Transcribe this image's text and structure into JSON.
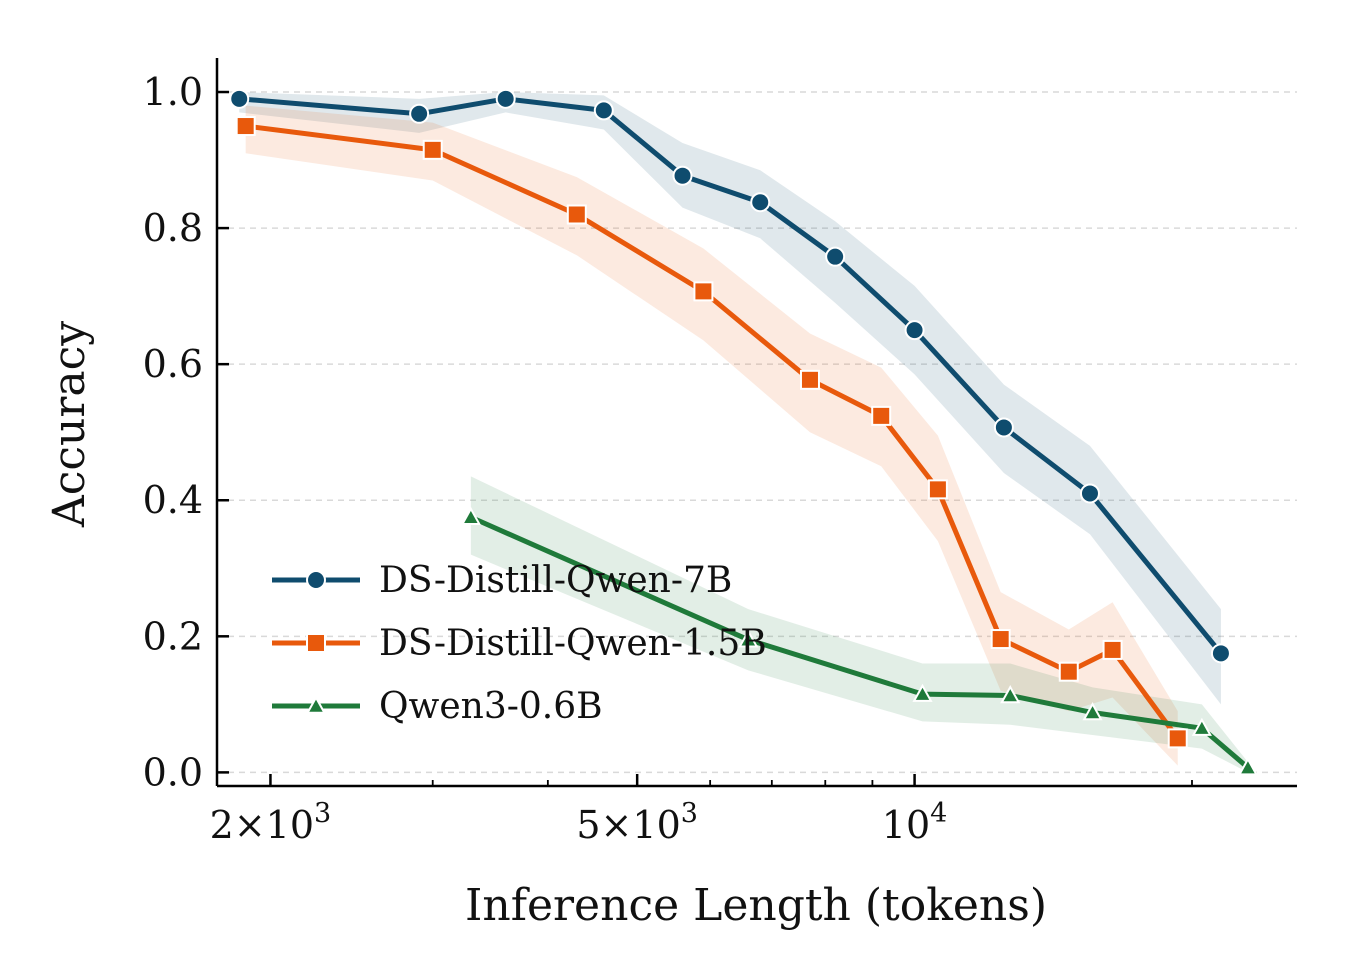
{
  "chart_data": {
    "type": "line",
    "xlabel": "Inference Length (tokens)",
    "ylabel": "Accuracy",
    "x_scale": "log",
    "xlim": [
      1750,
      26000
    ],
    "ylim": [
      -0.02,
      1.05
    ],
    "x_ticks": [
      {
        "value": 2000,
        "label_base": "2×10",
        "label_exp": "3"
      },
      {
        "value": 5000,
        "label_base": "5×10",
        "label_exp": "3"
      },
      {
        "value": 10000,
        "label_base": "10",
        "label_exp": "4"
      }
    ],
    "x_minor_ticks": [
      3000,
      4000,
      6000,
      7000,
      8000,
      9000,
      20000
    ],
    "y_ticks": [
      {
        "value": 0.0,
        "label": "0.0"
      },
      {
        "value": 0.2,
        "label": "0.2"
      },
      {
        "value": 0.4,
        "label": "0.4"
      },
      {
        "value": 0.6,
        "label": "0.6"
      },
      {
        "value": 0.8,
        "label": "0.8"
      },
      {
        "value": 1.0,
        "label": "1.0"
      }
    ],
    "grid": "horizontal dashed",
    "legend_position": "lower-left",
    "series": [
      {
        "name": "DS-Distill-Qwen-7B",
        "color": "#0f4c6e",
        "marker": "circle",
        "x": [
          1850,
          2900,
          3600,
          4600,
          5600,
          6800,
          8200,
          10000,
          12500,
          15500,
          21500
        ],
        "y": [
          0.99,
          0.968,
          0.99,
          0.973,
          0.877,
          0.838,
          0.758,
          0.65,
          0.507,
          0.41,
          0.175
        ],
        "band_low": [
          0.97,
          0.94,
          0.97,
          0.945,
          0.83,
          0.785,
          0.69,
          0.585,
          0.44,
          0.35,
          0.1
        ],
        "band_high": [
          1.0,
          0.99,
          1.0,
          0.995,
          0.925,
          0.885,
          0.81,
          0.715,
          0.57,
          0.48,
          0.24
        ]
      },
      {
        "name": "DS-Distill-Qwen-1.5B",
        "color": "#e8590c",
        "marker": "square",
        "x": [
          1880,
          3000,
          4300,
          5900,
          7700,
          9200,
          10600,
          12400,
          14700,
          16400,
          19300
        ],
        "y": [
          0.95,
          0.915,
          0.82,
          0.707,
          0.577,
          0.524,
          0.416,
          0.196,
          0.148,
          0.18,
          0.05
        ],
        "band_low": [
          0.91,
          0.87,
          0.76,
          0.635,
          0.5,
          0.45,
          0.34,
          0.12,
          0.09,
          0.11,
          0.01
        ],
        "band_high": [
          0.98,
          0.955,
          0.875,
          0.77,
          0.645,
          0.595,
          0.495,
          0.265,
          0.21,
          0.25,
          0.09
        ]
      },
      {
        "name": "Qwen3-0.6B",
        "color": "#1f7a3a",
        "marker": "triangle",
        "x": [
          3300,
          6600,
          10200,
          12700,
          15600,
          20500,
          23000
        ],
        "y": [
          0.375,
          0.195,
          0.115,
          0.113,
          0.088,
          0.065,
          0.007
        ],
        "band_low": [
          0.32,
          0.15,
          0.075,
          0.07,
          0.055,
          0.035,
          0.0
        ],
        "band_high": [
          0.435,
          0.24,
          0.16,
          0.16,
          0.125,
          0.1,
          0.015
        ]
      }
    ]
  }
}
